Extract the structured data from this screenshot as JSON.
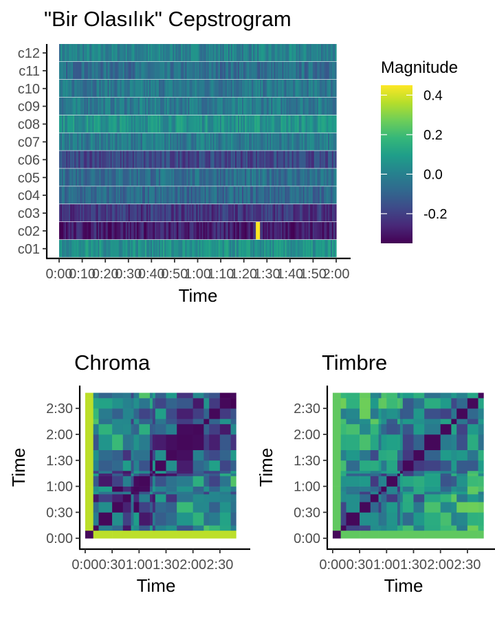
{
  "colors": {
    "viridis": [
      "#440154",
      "#482878",
      "#3e4a89",
      "#31688e",
      "#26828e",
      "#1f9e89",
      "#35b779",
      "#6ece58",
      "#b5de2b",
      "#fde725"
    ]
  },
  "chart_data": [
    {
      "id": "cepstrogram",
      "type": "heatmap",
      "title": "\"Bir Olasılık\" Cepstrogram",
      "xlabel": "Time",
      "ylabel": "",
      "x_ticks": [
        "0:00",
        "0:10",
        "0:20",
        "0:30",
        "0:40",
        "0:50",
        "1:00",
        "1:10",
        "1:20",
        "1:30",
        "1:40",
        "1:50",
        "2:00"
      ],
      "x_tick_seconds": [
        0,
        10,
        20,
        30,
        40,
        50,
        60,
        70,
        80,
        90,
        100,
        110,
        120
      ],
      "xlim": [
        0,
        120
      ],
      "y_categories": [
        "c01",
        "c02",
        "c03",
        "c04",
        "c05",
        "c06",
        "c07",
        "c08",
        "c09",
        "c10",
        "c11",
        "c12"
      ],
      "row_means": [
        0.05,
        -0.28,
        -0.22,
        -0.08,
        -0.06,
        -0.18,
        -0.02,
        0.06,
        -0.02,
        -0.03,
        -0.06,
        0.0
      ],
      "notes_peak": {
        "row": "c02",
        "time_seconds": 86,
        "value": 0.45
      },
      "legend": {
        "title": "Magnitude",
        "labels": [
          "0.4",
          "0.2",
          "0.0",
          "-0.2"
        ],
        "values": [
          0.4,
          0.2,
          0.0,
          -0.2
        ],
        "range": [
          -0.35,
          0.45
        ],
        "placement": "right"
      }
    },
    {
      "id": "chroma-ssm",
      "type": "heatmap",
      "title": "Chroma",
      "xlabel": "Time",
      "ylabel": "Time",
      "x_ticks": [
        "0:00",
        "0:30",
        "1:00",
        "1:30",
        "2:00",
        "2:30"
      ],
      "y_ticks": [
        "0:00",
        "0:30",
        "1:00",
        "1:30",
        "2:00",
        "2:30"
      ],
      "tick_seconds": [
        0,
        30,
        60,
        90,
        120,
        150
      ],
      "lim": [
        -3,
        170
      ],
      "segment_bounds": [
        0,
        9,
        15,
        30,
        42,
        51,
        54,
        60,
        72,
        75,
        78,
        90,
        102,
        120,
        132,
        138,
        150,
        162,
        168
      ]
    },
    {
      "id": "timbre-ssm",
      "type": "heatmap",
      "title": "Timbre",
      "xlabel": "Time",
      "ylabel": "Time",
      "x_ticks": [
        "0:00",
        "0:30",
        "1:00",
        "1:30",
        "2:00",
        "2:30"
      ],
      "y_ticks": [
        "0:00",
        "0:30",
        "1:00",
        "1:30",
        "2:00",
        "2:30"
      ],
      "tick_seconds": [
        0,
        30,
        60,
        90,
        120,
        150
      ],
      "lim": [
        -3,
        170
      ],
      "segment_bounds": [
        0,
        9,
        15,
        30,
        42,
        51,
        54,
        60,
        72,
        75,
        78,
        90,
        102,
        120,
        132,
        138,
        150,
        162,
        168
      ]
    }
  ]
}
